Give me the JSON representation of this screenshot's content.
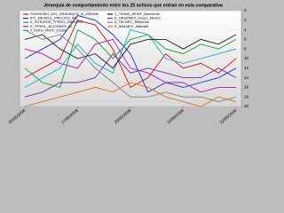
{
  "chart_data": {
    "type": "line",
    "title": "Jerarquía de comportamiento entre los 20 activos que entran en esta comparativa",
    "categories": [
      "05/05/2008",
      null,
      null,
      "17/05/2008",
      null,
      null,
      "29/05/2008",
      null,
      null,
      "10/06/2008",
      null,
      null,
      "22/06/2008"
    ],
    "ylim": [
      20,
      0
    ],
    "yticks": [
      0,
      2,
      4,
      6,
      8,
      10,
      12,
      14,
      16,
      18,
      20
    ],
    "grid": true,
    "series": [
      {
        "name": "FMX050501_DIG_GRADIENTE_B_1000000",
        "color": "#d01010",
        "values": [
          14,
          12,
          10,
          2,
          3,
          8,
          16,
          14,
          9,
          12,
          11,
          13,
          10
        ]
      },
      {
        "name": "IPC_MEXBOL_PRECIOS_IND",
        "color": "#1030d0",
        "values": [
          10,
          8,
          6,
          1,
          2,
          5,
          9,
          17,
          15,
          16,
          15,
          14,
          12
        ]
      },
      {
        "name": "E_FUTUROS_TPRDG_EMISORA",
        "color": "#10a030",
        "values": [
          12,
          15,
          16,
          4,
          6,
          10,
          6,
          5,
          8,
          9,
          7,
          8,
          6
        ]
      },
      {
        "name": "E_TFHEIL_ACCIONES_IN",
        "color": "#c010c0",
        "values": [
          8,
          9,
          11,
          12,
          7,
          6,
          12,
          13,
          15,
          15,
          17,
          16,
          16
        ]
      },
      {
        "name": "7_FUTU_FEVC_Chubb",
        "color": "#10b0c0",
        "values": [
          16,
          14,
          12,
          7,
          11,
          13,
          4,
          5,
          10,
          11,
          10,
          9,
          8
        ]
      },
      {
        "name": "1_TRANS_NFIDF_Bancomer",
        "color": "#202020",
        "values": [
          6,
          5,
          8,
          10,
          9,
          12,
          7,
          6,
          6,
          8,
          6,
          7,
          5
        ]
      },
      {
        "name": "E_GRUPMEX_Grupo_Mexico",
        "color": "#7030a0",
        "values": [
          18,
          17,
          15,
          15,
          14,
          9,
          13,
          12,
          13,
          14,
          14,
          12,
          14
        ]
      },
      {
        "name": "5_TELMEX_Telefonos",
        "color": "#808080",
        "values": [
          4,
          6,
          5,
          8,
          12,
          15,
          18,
          18,
          17,
          18,
          18,
          19,
          18
        ]
      },
      {
        "name": "E_WALMEX_Walmart",
        "color": "#e07010",
        "values": [
          20,
          19,
          18,
          17,
          16,
          17,
          15,
          16,
          18,
          19,
          20,
          18,
          19
        ]
      }
    ]
  }
}
